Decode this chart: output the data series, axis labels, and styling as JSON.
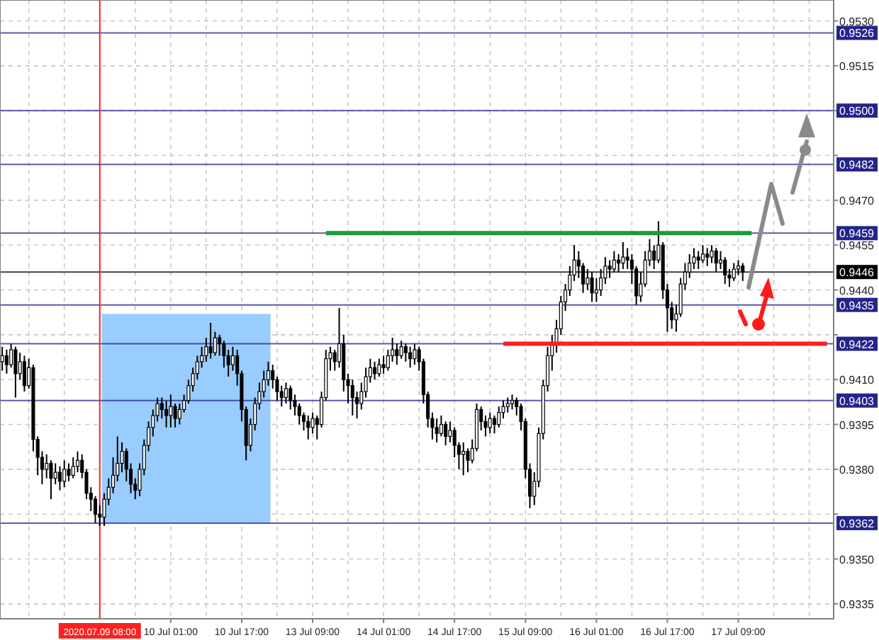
{
  "chart_data": {
    "type": "candlestick",
    "categories": [
      null,
      null,
      null,
      null,
      null,
      null,
      null,
      null,
      null,
      null,
      null,
      null,
      null,
      null,
      null,
      null,
      null,
      null,
      null,
      null,
      null,
      null,
      "2020.07.09 08:00",
      null,
      null,
      null,
      null,
      null,
      null,
      null,
      null,
      null,
      null,
      null,
      null,
      null,
      null,
      null,
      "10 Jul 01:00",
      null,
      null,
      null,
      null,
      null,
      null,
      null,
      null,
      null,
      null,
      null,
      null,
      null,
      null,
      null,
      "10 Jul 17:00",
      null,
      null,
      null,
      null,
      null,
      null,
      null,
      null,
      null,
      null,
      null,
      null,
      null,
      null,
      null,
      "13 Jul 09:00",
      null,
      null,
      null,
      null,
      null,
      null,
      null,
      null,
      null,
      null,
      null,
      null,
      null,
      null,
      null,
      "14 Jul 01:00",
      null,
      null,
      null,
      null,
      null,
      null,
      null,
      null,
      null,
      null,
      null,
      null,
      null,
      null,
      null,
      "14 Jul 17:00",
      null,
      null,
      null,
      null,
      null,
      null,
      null,
      null,
      null,
      null,
      null,
      null,
      null,
      null,
      null,
      "15 Jul 09:00",
      null,
      null,
      null,
      null,
      null,
      null,
      null,
      null,
      null,
      null,
      null,
      null,
      null,
      null,
      null,
      "16 Jul 01:00",
      null,
      null,
      null,
      null,
      null,
      null,
      null,
      null,
      null,
      null,
      null,
      null,
      null,
      null,
      null,
      "16 Jul 17:00",
      null,
      null,
      null,
      null,
      null,
      null,
      null,
      null,
      null,
      null,
      null,
      null,
      null,
      null,
      null,
      "17 Jul 09:00",
      null,
      null,
      null,
      null,
      null,
      null,
      null,
      null,
      null,
      null,
      null,
      null,
      null,
      null,
      null,
      null,
      null,
      null,
      null,
      null,
      null
    ],
    "ohlc": [
      [
        0.9416,
        0.9421,
        0.9413,
        0.9418
      ],
      [
        0.9418,
        0.942,
        0.9412,
        0.9415
      ],
      [
        0.9415,
        0.9422,
        0.9414,
        0.942
      ],
      [
        0.942,
        0.9421,
        0.9404,
        0.9412
      ],
      [
        0.9412,
        0.9419,
        0.941,
        0.9416
      ],
      [
        0.9416,
        0.9418,
        0.9406,
        0.9408
      ],
      [
        0.9408,
        0.9417,
        0.9407,
        0.9414
      ],
      [
        0.9414,
        0.9415,
        0.9386,
        0.939
      ],
      [
        0.939,
        0.9391,
        0.9378,
        0.9384
      ],
      [
        0.9384,
        0.9386,
        0.9375,
        0.938
      ],
      [
        0.938,
        0.9385,
        0.9377,
        0.9382
      ],
      [
        0.9382,
        0.9383,
        0.937,
        0.9377
      ],
      [
        0.9377,
        0.9382,
        0.9375,
        0.9379
      ],
      [
        0.9379,
        0.9381,
        0.9373,
        0.9376
      ],
      [
        0.9376,
        0.9383,
        0.9374,
        0.938
      ],
      [
        0.938,
        0.9382,
        0.9376,
        0.9378
      ],
      [
        0.9378,
        0.9384,
        0.9377,
        0.9381
      ],
      [
        0.9381,
        0.9386,
        0.9379,
        0.9383
      ],
      [
        0.9383,
        0.9385,
        0.9377,
        0.9379
      ],
      [
        0.9379,
        0.938,
        0.937,
        0.9372
      ],
      [
        0.9372,
        0.9374,
        0.9366,
        0.937
      ],
      [
        0.937,
        0.9371,
        0.9362,
        0.9365
      ],
      [
        0.9365,
        0.9368,
        0.9361,
        0.9364
      ],
      [
        0.9364,
        0.9372,
        0.9361,
        0.937
      ],
      [
        0.937,
        0.9377,
        0.9368,
        0.9374
      ],
      [
        0.9374,
        0.9384,
        0.9372,
        0.9378
      ],
      [
        0.9378,
        0.9391,
        0.9376,
        0.9382
      ],
      [
        0.9382,
        0.9389,
        0.9379,
        0.9386
      ],
      [
        0.9386,
        0.9387,
        0.9376,
        0.938
      ],
      [
        0.938,
        0.9382,
        0.9372,
        0.9375
      ],
      [
        0.9375,
        0.9377,
        0.937,
        0.9373
      ],
      [
        0.9373,
        0.9382,
        0.9371,
        0.938
      ],
      [
        0.938,
        0.939,
        0.9378,
        0.9388
      ],
      [
        0.9388,
        0.9396,
        0.9386,
        0.9394
      ],
      [
        0.9394,
        0.94,
        0.9391,
        0.9398
      ],
      [
        0.9398,
        0.9404,
        0.9396,
        0.9402
      ],
      [
        0.9402,
        0.9404,
        0.9397,
        0.94
      ],
      [
        0.94,
        0.9403,
        0.9394,
        0.9398
      ],
      [
        0.9398,
        0.9405,
        0.9394,
        0.9401
      ],
      [
        0.9401,
        0.9402,
        0.9394,
        0.9397
      ],
      [
        0.9397,
        0.9402,
        0.9395,
        0.94
      ],
      [
        0.94,
        0.9405,
        0.9399,
        0.9403
      ],
      [
        0.9403,
        0.941,
        0.9402,
        0.9408
      ],
      [
        0.9408,
        0.9414,
        0.9406,
        0.9412
      ],
      [
        0.9412,
        0.9418,
        0.941,
        0.9416
      ],
      [
        0.9416,
        0.9421,
        0.9414,
        0.9418
      ],
      [
        0.9418,
        0.9424,
        0.9416,
        0.9421
      ],
      [
        0.9421,
        0.9429,
        0.9417,
        0.9419
      ],
      [
        0.9419,
        0.9426,
        0.9418,
        0.9424
      ],
      [
        0.9424,
        0.9425,
        0.9418,
        0.9422
      ],
      [
        0.9422,
        0.9423,
        0.9414,
        0.9418
      ],
      [
        0.9418,
        0.942,
        0.9411,
        0.9415
      ],
      [
        0.9415,
        0.9421,
        0.9413,
        0.9418
      ],
      [
        0.9418,
        0.942,
        0.9408,
        0.9412
      ],
      [
        0.9412,
        0.9413,
        0.9396,
        0.94
      ],
      [
        0.94,
        0.9401,
        0.9383,
        0.9388
      ],
      [
        0.9388,
        0.9397,
        0.9386,
        0.9395
      ],
      [
        0.9395,
        0.9404,
        0.9393,
        0.9402
      ],
      [
        0.9402,
        0.9409,
        0.94,
        0.9406
      ],
      [
        0.9406,
        0.9413,
        0.9404,
        0.941
      ],
      [
        0.941,
        0.9416,
        0.9408,
        0.9413
      ],
      [
        0.9413,
        0.9415,
        0.9407,
        0.941
      ],
      [
        0.941,
        0.9411,
        0.9403,
        0.9406
      ],
      [
        0.9406,
        0.9408,
        0.9401,
        0.9404
      ],
      [
        0.9404,
        0.9409,
        0.9402,
        0.9407
      ],
      [
        0.9407,
        0.9408,
        0.94,
        0.9403
      ],
      [
        0.9403,
        0.9405,
        0.9398,
        0.9401
      ],
      [
        0.9401,
        0.9402,
        0.9395,
        0.9398
      ],
      [
        0.9398,
        0.9399,
        0.9393,
        0.9396
      ],
      [
        0.9396,
        0.9398,
        0.939,
        0.9394
      ],
      [
        0.9394,
        0.9399,
        0.9392,
        0.9397
      ],
      [
        0.9397,
        0.9398,
        0.939,
        0.9395
      ],
      [
        0.9395,
        0.9406,
        0.9394,
        0.9404
      ],
      [
        0.9404,
        0.942,
        0.9403,
        0.9417
      ],
      [
        0.9417,
        0.9421,
        0.9413,
        0.9419
      ],
      [
        0.9419,
        0.942,
        0.9413,
        0.9416
      ],
      [
        0.9416,
        0.9434,
        0.9414,
        0.9422
      ],
      [
        0.9422,
        0.9425,
        0.9406,
        0.941
      ],
      [
        0.941,
        0.9412,
        0.9402,
        0.9408
      ],
      [
        0.9408,
        0.941,
        0.9398,
        0.9404
      ],
      [
        0.9404,
        0.9406,
        0.9397,
        0.9402
      ],
      [
        0.9402,
        0.9409,
        0.94,
        0.9406
      ],
      [
        0.9406,
        0.9414,
        0.9404,
        0.9411
      ],
      [
        0.9411,
        0.9417,
        0.9409,
        0.9414
      ],
      [
        0.9414,
        0.9416,
        0.941,
        0.9412
      ],
      [
        0.9412,
        0.9417,
        0.9411,
        0.9415
      ],
      [
        0.9415,
        0.9418,
        0.9412,
        0.9414
      ],
      [
        0.9414,
        0.942,
        0.9413,
        0.9418
      ],
      [
        0.9418,
        0.9424,
        0.9416,
        0.942
      ],
      [
        0.942,
        0.9422,
        0.9415,
        0.9418
      ],
      [
        0.9418,
        0.9423,
        0.9417,
        0.9421
      ],
      [
        0.9421,
        0.9422,
        0.9416,
        0.9419
      ],
      [
        0.9419,
        0.9421,
        0.9414,
        0.9417
      ],
      [
        0.9417,
        0.9422,
        0.9415,
        0.942
      ],
      [
        0.942,
        0.9421,
        0.9413,
        0.9416
      ],
      [
        0.9416,
        0.9417,
        0.9402,
        0.9405
      ],
      [
        0.9405,
        0.9406,
        0.9394,
        0.9397
      ],
      [
        0.9397,
        0.9399,
        0.939,
        0.9394
      ],
      [
        0.9394,
        0.9397,
        0.9389,
        0.9392
      ],
      [
        0.9392,
        0.9398,
        0.9391,
        0.9395
      ],
      [
        0.9395,
        0.9396,
        0.9388,
        0.9391
      ],
      [
        0.9391,
        0.9396,
        0.9389,
        0.9393
      ],
      [
        0.9393,
        0.9394,
        0.9384,
        0.9388
      ],
      [
        0.9388,
        0.9389,
        0.938,
        0.9385
      ],
      [
        0.9385,
        0.9389,
        0.9378,
        0.9386
      ],
      [
        0.9386,
        0.9387,
        0.9379,
        0.9383
      ],
      [
        0.9383,
        0.939,
        0.9382,
        0.9387
      ],
      [
        0.9387,
        0.9402,
        0.9386,
        0.94
      ],
      [
        0.94,
        0.9401,
        0.9393,
        0.9396
      ],
      [
        0.9396,
        0.9398,
        0.9391,
        0.9394
      ],
      [
        0.9394,
        0.9399,
        0.9392,
        0.9397
      ],
      [
        0.9397,
        0.9398,
        0.9392,
        0.9395
      ],
      [
        0.9395,
        0.9401,
        0.9394,
        0.9399
      ],
      [
        0.9399,
        0.9403,
        0.9397,
        0.9401
      ],
      [
        0.9401,
        0.9404,
        0.9399,
        0.9402
      ],
      [
        0.9402,
        0.9405,
        0.94,
        0.9403
      ],
      [
        0.9403,
        0.9404,
        0.9398,
        0.9401
      ],
      [
        0.9401,
        0.9402,
        0.9393,
        0.9396
      ],
      [
        0.9396,
        0.9397,
        0.9377,
        0.938
      ],
      [
        0.938,
        0.9382,
        0.9367,
        0.9371
      ],
      [
        0.9371,
        0.9379,
        0.9368,
        0.9376
      ],
      [
        0.9376,
        0.9394,
        0.9374,
        0.9392
      ],
      [
        0.9392,
        0.941,
        0.939,
        0.9408
      ],
      [
        0.9408,
        0.9421,
        0.9406,
        0.9418
      ],
      [
        0.9418,
        0.9425,
        0.9413,
        0.9422
      ],
      [
        0.9422,
        0.943,
        0.9419,
        0.9427
      ],
      [
        0.9427,
        0.9438,
        0.9425,
        0.9436
      ],
      [
        0.9436,
        0.9442,
        0.9433,
        0.944
      ],
      [
        0.944,
        0.9448,
        0.9438,
        0.9445
      ],
      [
        0.9445,
        0.9455,
        0.9443,
        0.945
      ],
      [
        0.945,
        0.9453,
        0.9444,
        0.9448
      ],
      [
        0.9448,
        0.9449,
        0.9439,
        0.9442
      ],
      [
        0.9442,
        0.9447,
        0.944,
        0.9444
      ],
      [
        0.9444,
        0.9446,
        0.9436,
        0.9439
      ],
      [
        0.9439,
        0.9444,
        0.9436,
        0.944
      ],
      [
        0.944,
        0.9447,
        0.9438,
        0.9444
      ],
      [
        0.9444,
        0.9451,
        0.9442,
        0.9448
      ],
      [
        0.9448,
        0.945,
        0.9444,
        0.9447
      ],
      [
        0.9447,
        0.9453,
        0.9446,
        0.945
      ],
      [
        0.945,
        0.9452,
        0.9446,
        0.9449
      ],
      [
        0.9449,
        0.9456,
        0.9447,
        0.9451
      ],
      [
        0.9451,
        0.9454,
        0.9447,
        0.945
      ],
      [
        0.945,
        0.9452,
        0.9442,
        0.9447
      ],
      [
        0.9447,
        0.9448,
        0.9435,
        0.9438
      ],
      [
        0.9438,
        0.9446,
        0.9436,
        0.9442
      ],
      [
        0.9442,
        0.9453,
        0.9441,
        0.945
      ],
      [
        0.945,
        0.9457,
        0.9448,
        0.9453
      ],
      [
        0.9453,
        0.9455,
        0.9447,
        0.945
      ],
      [
        0.945,
        0.9463,
        0.9449,
        0.9455
      ],
      [
        0.9455,
        0.9456,
        0.9437,
        0.944
      ],
      [
        0.944,
        0.9442,
        0.9426,
        0.9434
      ],
      [
        0.9434,
        0.9436,
        0.9427,
        0.943
      ],
      [
        0.943,
        0.9435,
        0.9426,
        0.9432
      ],
      [
        0.9432,
        0.9444,
        0.9431,
        0.9442
      ],
      [
        0.9442,
        0.9449,
        0.944,
        0.9446
      ],
      [
        0.9446,
        0.9452,
        0.9444,
        0.9449
      ],
      [
        0.9449,
        0.9454,
        0.9447,
        0.9451
      ],
      [
        0.9451,
        0.9453,
        0.9447,
        0.945
      ],
      [
        0.945,
        0.9455,
        0.9449,
        0.9452
      ],
      [
        0.9452,
        0.9454,
        0.9448,
        0.9451
      ],
      [
        0.9451,
        0.9455,
        0.9449,
        0.9453
      ],
      [
        0.9453,
        0.9454,
        0.9446,
        0.9449
      ],
      [
        0.9449,
        0.9453,
        0.9447,
        0.945
      ],
      [
        0.945,
        0.9451,
        0.9442,
        0.9445
      ],
      [
        0.9445,
        0.9447,
        0.9441,
        0.9444
      ],
      [
        0.9444,
        0.9449,
        0.9443,
        0.9447
      ],
      [
        0.9447,
        0.945,
        0.9445,
        0.9448
      ],
      [
        0.9448,
        0.9449,
        0.9443,
        0.9446
      ],
      null,
      null,
      null,
      null,
      null,
      null,
      null,
      null,
      null,
      null,
      null,
      null,
      null,
      null,
      null,
      null,
      null,
      null,
      null,
      null
    ],
    "series": [
      {
        "type": "line",
        "color": "#1a9c3a",
        "values": [
          null,
          null,
          null,
          null,
          null,
          null,
          null,
          null,
          null,
          null,
          null,
          null,
          null,
          null,
          null,
          null,
          null,
          null,
          null,
          null,
          null,
          null,
          null,
          null,
          null,
          null,
          null,
          null,
          null,
          null,
          null,
          null,
          null,
          null,
          null,
          null,
          null,
          null,
          null,
          null,
          null,
          null,
          null,
          null,
          null,
          null,
          null,
          null,
          null,
          null,
          null,
          null,
          null,
          null,
          null,
          null,
          null,
          null,
          null,
          null,
          null,
          null,
          null,
          null,
          null,
          null,
          null,
          null,
          null,
          null,
          null,
          null,
          null,
          0.9459,
          0.9459,
          0.9459,
          0.9459,
          0.9459,
          0.9459,
          0.9459,
          0.9459,
          0.9459,
          0.9459,
          0.9459,
          0.9459,
          0.9459,
          0.9459,
          0.9459,
          0.9459,
          0.9459,
          0.9459,
          0.9459,
          0.9459,
          0.9459,
          0.9459,
          0.9459,
          0.9459,
          0.9459,
          0.9459,
          0.9459,
          0.9459,
          0.9459,
          0.9459,
          0.9459,
          0.9459,
          0.9459,
          0.9459,
          0.9459,
          0.9459,
          0.9459,
          0.9459,
          0.9459,
          0.9459,
          0.9459,
          0.9459,
          0.9459,
          0.9459,
          0.9459,
          0.9459,
          0.9459,
          0.9459,
          0.9459,
          0.9459,
          0.9459,
          0.9459,
          0.9459,
          0.9459,
          0.9459,
          0.9459,
          0.9459,
          0.9459,
          0.9459,
          0.9459,
          0.9459,
          0.9459,
          0.9459,
          0.9459,
          0.9459,
          0.9459,
          0.9459,
          0.9459,
          0.9459,
          0.9459,
          0.9459,
          0.9459,
          0.9459,
          0.9459,
          0.9459,
          0.9459,
          0.9459,
          0.9459,
          0.9459,
          0.9459,
          0.9459,
          0.9459,
          0.9459,
          0.9459,
          0.9459,
          0.9459,
          0.9459,
          0.9459,
          0.9459,
          0.9459,
          0.9459,
          0.9459,
          0.9459,
          0.9459,
          0.9459,
          0.9459,
          0.9459,
          null,
          null,
          null,
          null,
          null,
          null,
          null,
          null,
          null,
          null,
          null,
          null,
          null,
          null,
          null,
          null,
          null,
          null
        ]
      },
      {
        "type": "line",
        "color": "#ff2020",
        "values": [
          null,
          null,
          null,
          null,
          null,
          null,
          null,
          null,
          null,
          null,
          null,
          null,
          null,
          null,
          null,
          null,
          null,
          null,
          null,
          null,
          null,
          null,
          null,
          null,
          null,
          null,
          null,
          null,
          null,
          null,
          null,
          null,
          null,
          null,
          null,
          null,
          null,
          null,
          null,
          null,
          null,
          null,
          null,
          null,
          null,
          null,
          null,
          null,
          null,
          null,
          null,
          null,
          null,
          null,
          null,
          null,
          null,
          null,
          null,
          null,
          null,
          null,
          null,
          null,
          null,
          null,
          null,
          null,
          null,
          null,
          null,
          null,
          null,
          null,
          null,
          null,
          null,
          null,
          null,
          null,
          null,
          null,
          null,
          null,
          null,
          null,
          null,
          null,
          null,
          null,
          null,
          null,
          null,
          null,
          null,
          null,
          null,
          null,
          null,
          null,
          null,
          null,
          null,
          null,
          null,
          null,
          null,
          null,
          null,
          null,
          null,
          null,
          null,
          0.9422,
          0.9422,
          0.9422,
          0.9422,
          0.9422,
          0.9422,
          0.9422,
          0.9422,
          0.9422,
          0.9422,
          0.9422,
          0.9422,
          0.9422,
          0.9422,
          0.9422,
          0.9422,
          0.9422,
          0.9422,
          0.9422,
          0.9422,
          0.9422,
          0.9422,
          0.9422,
          0.9422,
          0.9422,
          0.9422,
          0.9422,
          0.9422,
          0.9422,
          0.9422,
          0.9422,
          0.9422,
          0.9422,
          0.9422,
          0.9422,
          0.9422,
          0.9422,
          0.9422,
          0.9422,
          0.9422,
          0.9422,
          0.9422,
          0.9422,
          0.9422,
          0.9422,
          0.9422,
          0.9422,
          0.9422,
          0.9422,
          0.9422,
          0.9422,
          0.9422,
          0.9422,
          0.9422,
          0.9422,
          0.9422,
          0.9422,
          0.9422,
          0.9422,
          0.9422,
          0.9422,
          0.9422,
          0.9422,
          0.9422,
          0.9422,
          0.9422,
          0.9422,
          0.9422,
          0.9422,
          0.9422,
          0.9422,
          0.9422,
          0.9422,
          0.9422,
          null
        ]
      }
    ],
    "ylim": [
      0.933,
      0.9537
    ],
    "yticks": [
      {
        "value": 0.953,
        "label": "0.9530"
      },
      0.9515,
      {
        "value": 0.95,
        "label": null
      },
      {
        "value": 0.9485,
        "label": null
      },
      {
        "value": 0.947,
        "label": "0.9470"
      },
      0.9455,
      {
        "value": 0.944,
        "label": "0.9440"
      },
      {
        "value": 0.9425,
        "label": null
      },
      {
        "value": 0.941,
        "label": "0.9410"
      },
      0.9395,
      {
        "value": 0.938,
        "label": "0.9380"
      },
      {
        "value": 0.9365,
        "label": null
      },
      {
        "value": 0.935,
        "label": "0.9350"
      },
      0.9335
    ],
    "grid": true,
    "ref_lines": [
      {
        "axis": "y",
        "value": 0.9526,
        "label": "0.9526",
        "color": "#24248c"
      },
      {
        "axis": "y",
        "value": 0.95,
        "label": "0.9500",
        "color": "#24248c"
      },
      {
        "axis": "y",
        "value": 0.9482,
        "label": "0.9482",
        "color": "#24248c"
      },
      {
        "axis": "y",
        "value": 0.9459,
        "label": "0.9459",
        "color": "#24248c"
      },
      {
        "axis": "y",
        "value": 0.9446,
        "label": "0.9446",
        "color": "#000000",
        "line_style": "solid"
      },
      {
        "axis": "y",
        "value": 0.9435,
        "label": "0.9435",
        "color": "#24248c"
      },
      {
        "axis": "y",
        "value": 0.9422,
        "label": "0.9422",
        "color": "#24248c"
      },
      {
        "axis": "y",
        "value": 0.9403,
        "label": "0.9403",
        "color": "#24248c"
      },
      {
        "axis": "y",
        "value": 0.9362,
        "label": "0.9362",
        "color": "#24248c"
      },
      {
        "axis": "x",
        "value": "2020.07.09 08:00",
        "color": "#ff2020"
      }
    ]
  }
}
